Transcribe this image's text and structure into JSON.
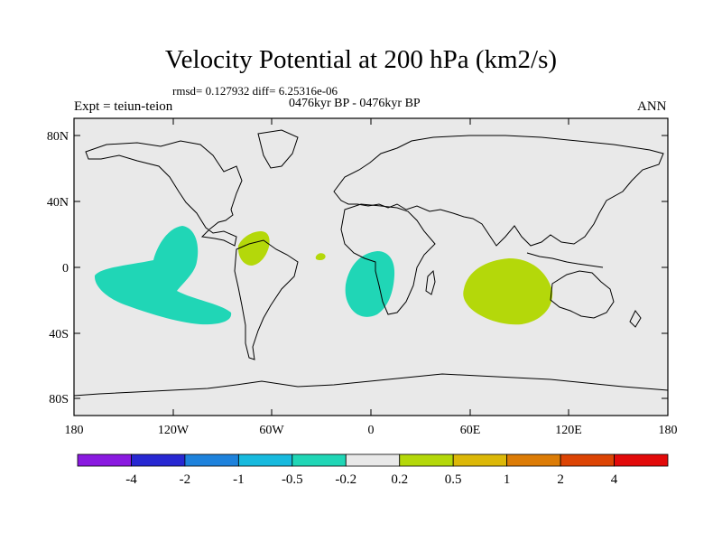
{
  "header": {
    "title": "Velocity Potential at 200 hPa (km2/s)",
    "stats": "rmsd= 0.127932 diff= 6.25316e-06",
    "period": "0476kyr BP - 0476kyr BP",
    "experiment": "Expt = teiun-teion",
    "season": "ANN"
  },
  "map": {
    "background_color": "#e9e9e9",
    "lat_labels": [
      "80N",
      "40N",
      "0",
      "40S",
      "80S"
    ],
    "lon_labels": [
      "180",
      "120W",
      "60W",
      "0",
      "60E",
      "120E",
      "180"
    ],
    "regions": [
      {
        "name": "central-pacific-negative",
        "category": "-0.5 to -0.2",
        "color": "#20d6b6"
      },
      {
        "name": "south-atlantic-negative",
        "category": "-0.5 to -0.2",
        "color": "#20d6b6"
      },
      {
        "name": "caribbean-positive",
        "category": "0.2 to 0.5",
        "color": "#b4d80a"
      },
      {
        "name": "atlantic-positive-spot",
        "category": "0.2 to 0.5",
        "color": "#b4d80a"
      },
      {
        "name": "indian-ocean-positive",
        "category": "0.2 to 0.5",
        "color": "#b4d80a"
      }
    ]
  },
  "colorbar": {
    "colors": [
      "#8a1ae0",
      "#2828d2",
      "#1e82dc",
      "#18bade",
      "#20d6b6",
      "#e9e9e9",
      "#b4d80a",
      "#dcb808",
      "#dc7c06",
      "#dc4404",
      "#e20a0a"
    ],
    "labels": [
      "-4",
      "-2",
      "-1",
      "-0.5",
      "-0.2",
      "0.2",
      "0.5",
      "1",
      "2",
      "4"
    ]
  }
}
